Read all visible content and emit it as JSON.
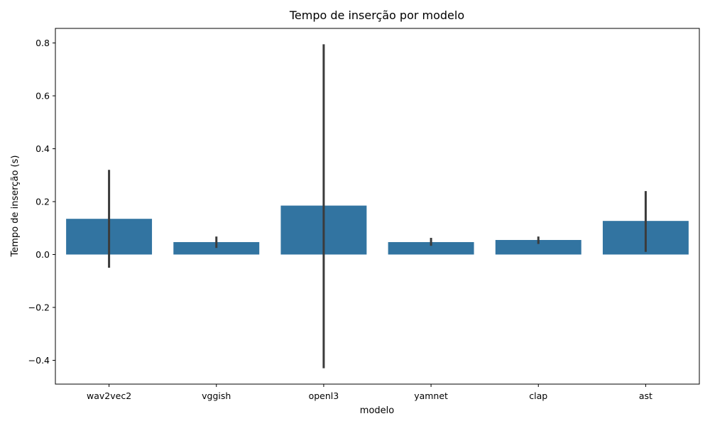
{
  "chart_data": {
    "type": "bar",
    "title": "Tempo de inserção por modelo",
    "xlabel": "modelo",
    "ylabel": "Tempo de inserção (s)",
    "categories": [
      "wav2vec2",
      "vggish",
      "openl3",
      "yamnet",
      "clap",
      "ast"
    ],
    "values": [
      0.135,
      0.047,
      0.185,
      0.047,
      0.055,
      0.127
    ],
    "error_low": [
      -0.05,
      0.025,
      -0.43,
      0.033,
      0.04,
      0.01
    ],
    "error_high": [
      0.32,
      0.068,
      0.795,
      0.063,
      0.068,
      0.24
    ],
    "ylim": [
      -0.49,
      0.855
    ],
    "yticks": [
      -0.4,
      -0.2,
      0.0,
      0.2,
      0.4,
      0.6,
      0.8
    ],
    "ytick_labels": [
      "−0.4",
      "−0.2",
      "0.0",
      "0.2",
      "0.4",
      "0.6",
      "0.8"
    ],
    "grid": false,
    "bar_color": "#3274a1",
    "errorbar_color": "#3b3b3b"
  }
}
